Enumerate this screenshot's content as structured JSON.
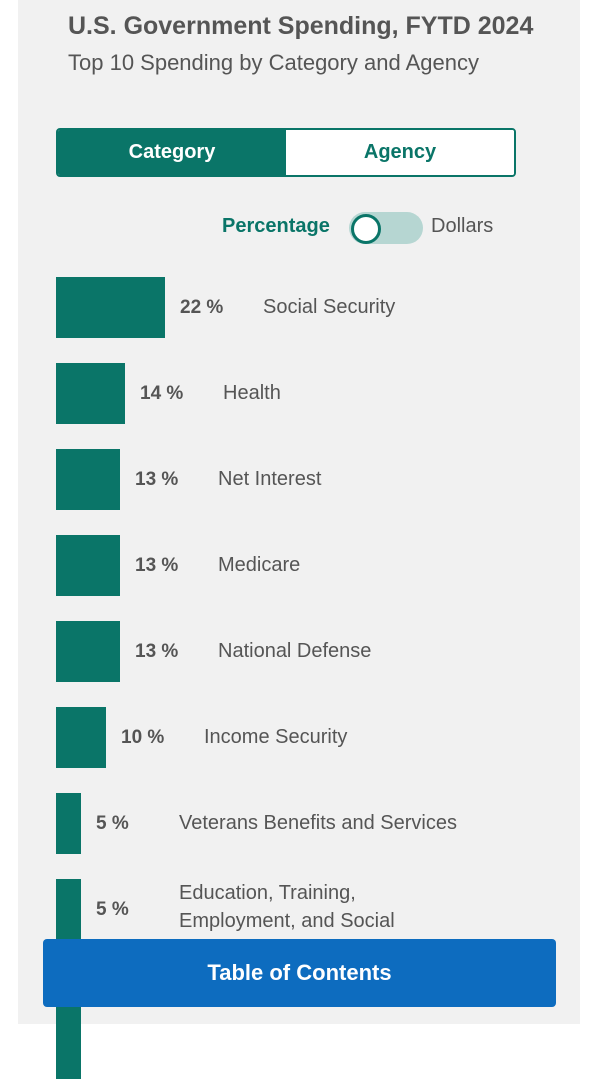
{
  "header": {
    "title": "U.S. Government Spending, FYTD 2024",
    "subtitle": "Top 10 Spending by Category and Agency"
  },
  "tabs": [
    {
      "label": "Category",
      "active": true
    },
    {
      "label": "Agency",
      "active": false
    }
  ],
  "toggle": {
    "left_label": "Percentage",
    "right_label": "Dollars",
    "selected": "Percentage"
  },
  "colors": {
    "accent": "#0a7568",
    "toggle_track": "#b6d6d2",
    "button": "#0d6cbf",
    "panel": "#f1f1f1",
    "text": "#555555"
  },
  "chart_data": {
    "type": "bar",
    "orientation": "horizontal",
    "categories": [
      "Social Security",
      "Health",
      "Net Interest",
      "Medicare",
      "National Defense",
      "Income Security",
      "Veterans Benefits and Services",
      "Education, Training, Employment, and Social"
    ],
    "values": [
      22,
      14,
      13,
      13,
      13,
      10,
      5,
      5
    ],
    "value_labels": [
      "22 %",
      "14 %",
      "13 %",
      "13 %",
      "13 %",
      "10 %",
      "5 %",
      "5 %"
    ],
    "unit": "%"
  },
  "footer": {
    "toc_label": "Table of Contents"
  }
}
